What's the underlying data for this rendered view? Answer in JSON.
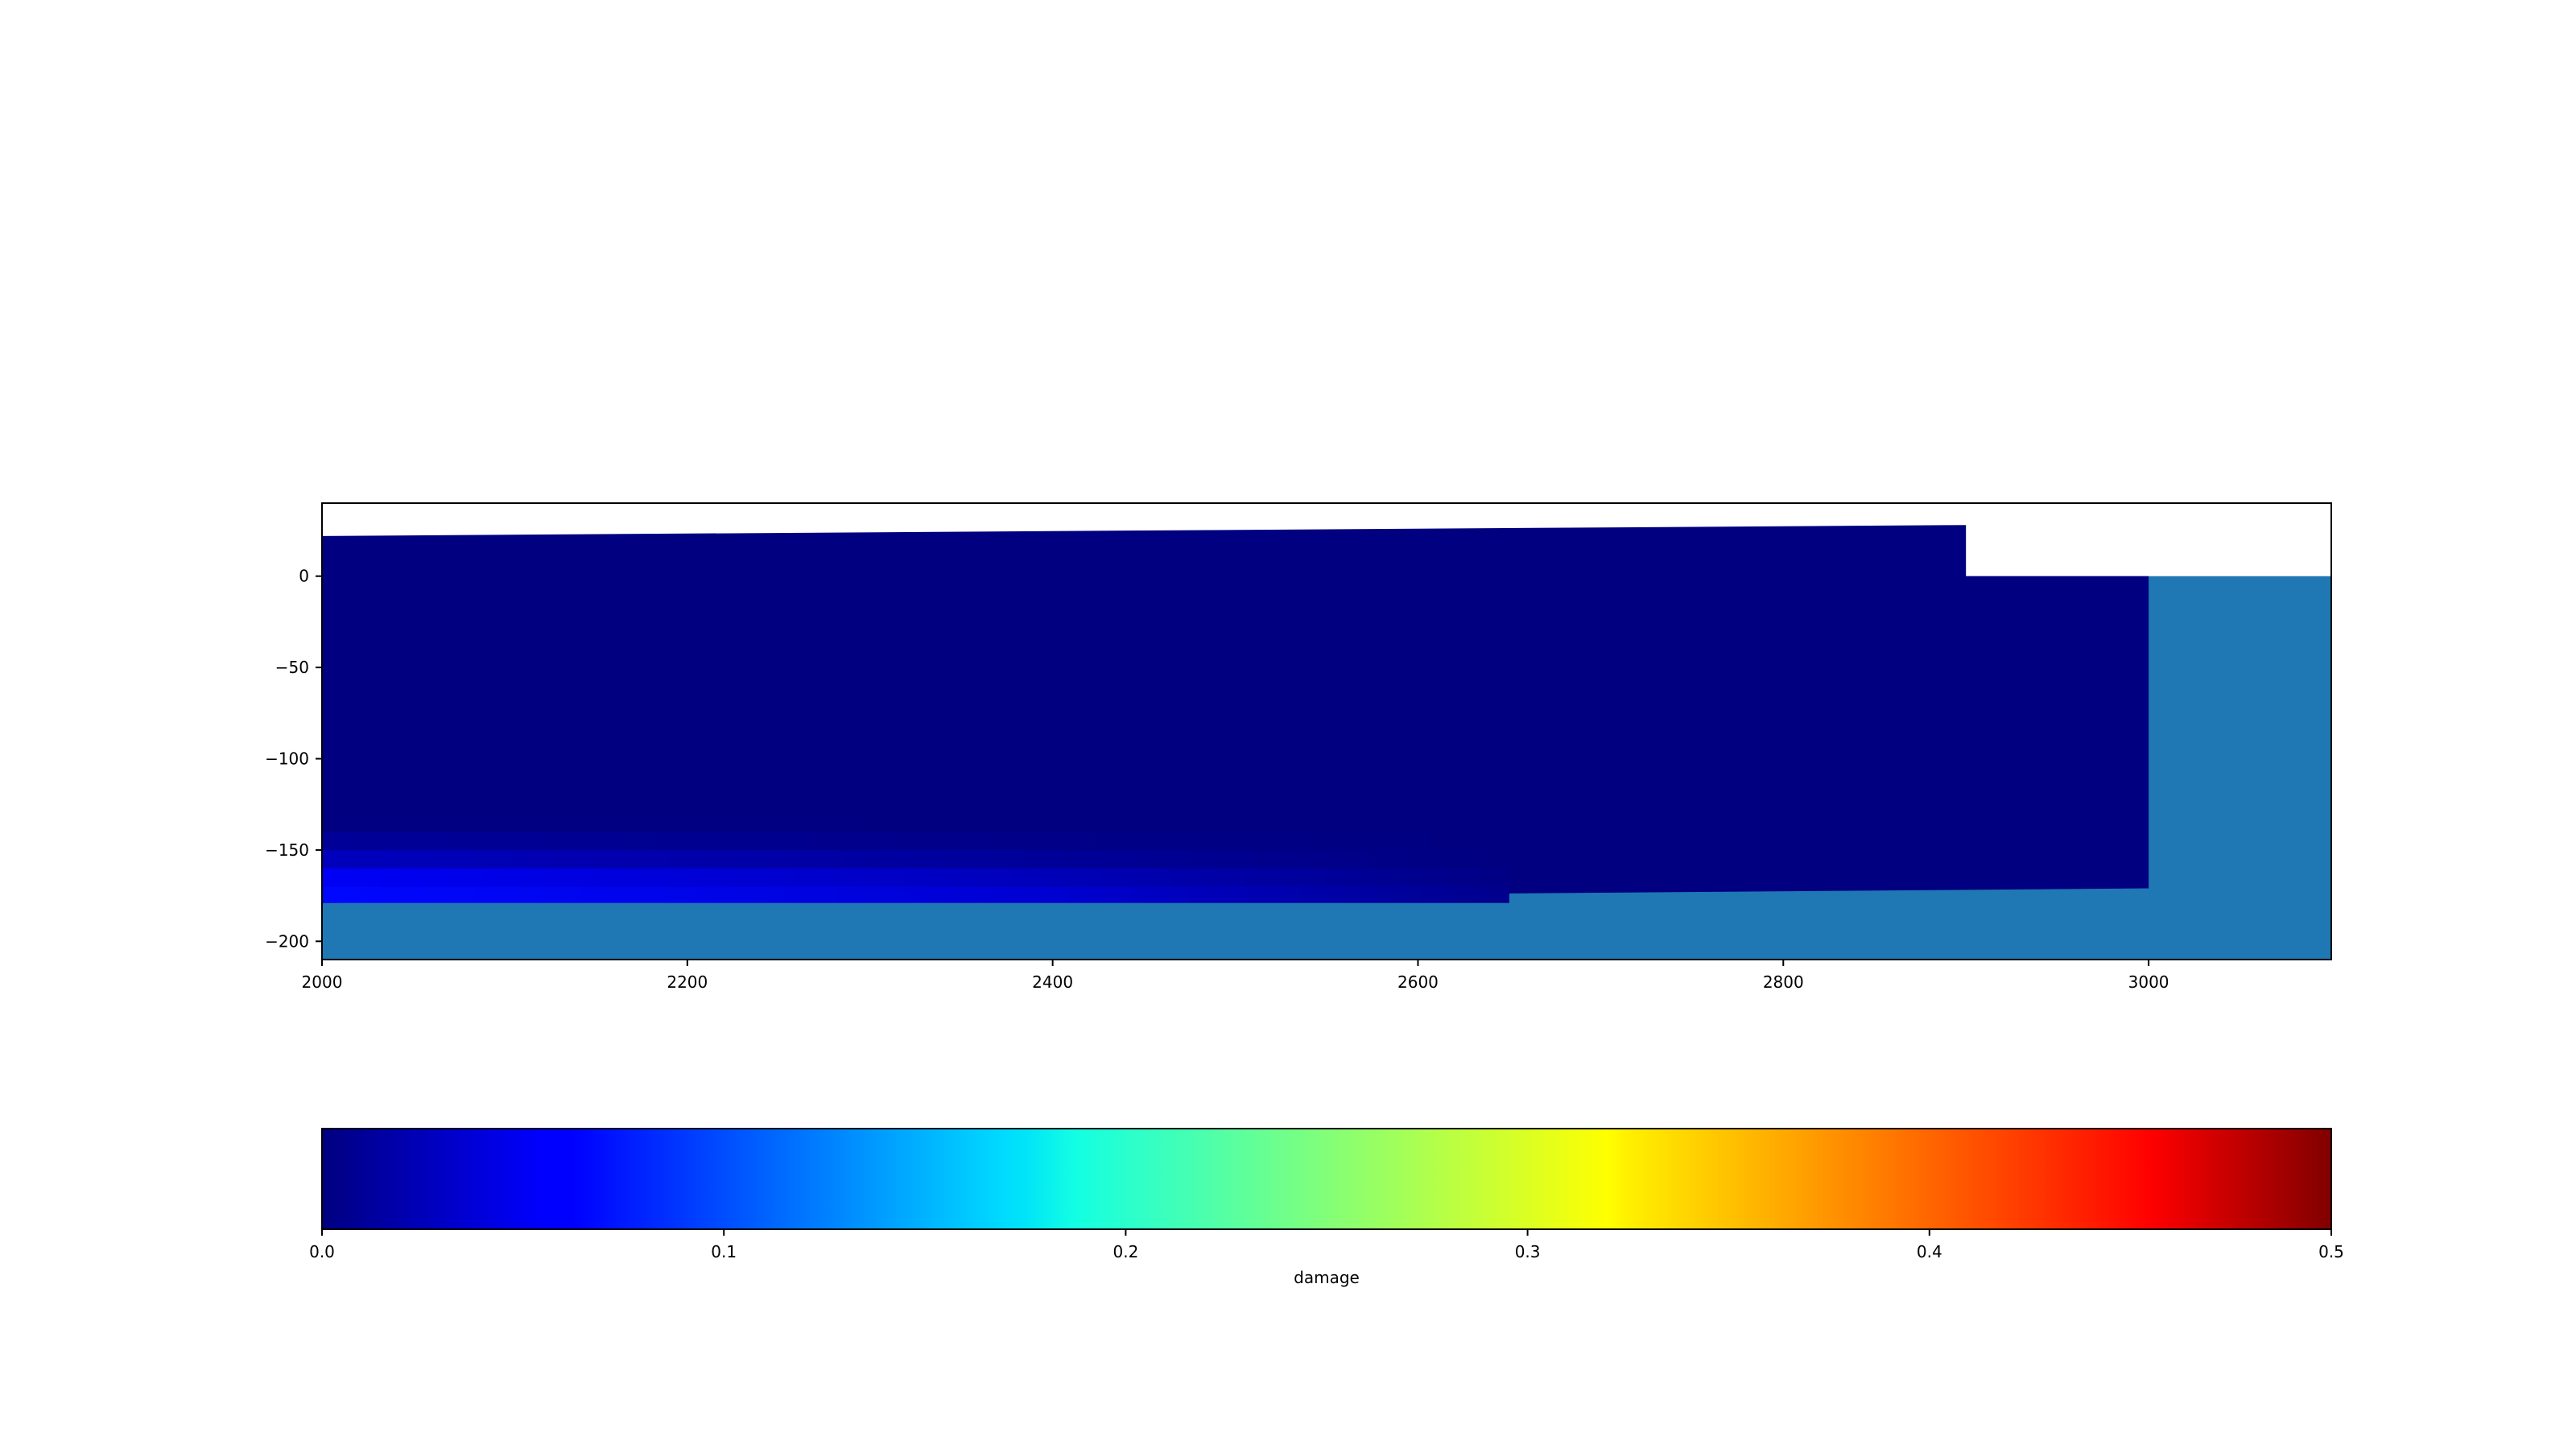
{
  "chart_data": {
    "type": "heatmap",
    "title": "",
    "xlabel": "",
    "ylabel": "",
    "xlim": [
      2000,
      3100
    ],
    "ylim": [
      -210,
      40
    ],
    "x_ticks": [
      2000,
      2200,
      2400,
      2600,
      2800,
      3000
    ],
    "y_ticks": [
      0,
      -50,
      -100,
      -150,
      -200
    ],
    "x_tick_labels": [
      "2000",
      "2200",
      "2400",
      "2600",
      "2800",
      "3000"
    ],
    "y_tick_labels": [
      "0",
      "−50",
      "−100",
      "−150",
      "−200"
    ],
    "grid": false,
    "background_fill_color": "#1f77b4",
    "background_fill_top": 0,
    "damage_field": {
      "upper_region": {
        "x": [
          2000,
          2900
        ],
        "top_y": [
          22,
          28
        ],
        "step_x": 2900,
        "lower_top_y": 0,
        "right_x": 3000,
        "bottom_y": [
          -179,
          -171
        ]
      },
      "bands": [
        {
          "y_top": -140,
          "y_bottom": -150,
          "damage": [
            0.012,
            0.004,
            0.0
          ]
        },
        {
          "y_top": -150,
          "y_bottom": -160,
          "damage": [
            0.03,
            0.012,
            0.0
          ]
        },
        {
          "y_top": -160,
          "y_bottom": -170,
          "damage": [
            0.058,
            0.028,
            0.002
          ]
        },
        {
          "y_top": -170,
          "y_bottom": -179,
          "damage": [
            0.066,
            0.04,
            0.006
          ]
        }
      ],
      "band_x": [
        2000,
        2400,
        2650
      ]
    },
    "colorbar": {
      "label": "damage",
      "orientation": "horizontal",
      "colormap": "jet",
      "range": [
        0.0,
        0.5
      ],
      "ticks": [
        0.0,
        0.1,
        0.2,
        0.3,
        0.4,
        0.5
      ],
      "tick_labels": [
        "0.0",
        "0.1",
        "0.2",
        "0.3",
        "0.4",
        "0.5"
      ]
    }
  }
}
